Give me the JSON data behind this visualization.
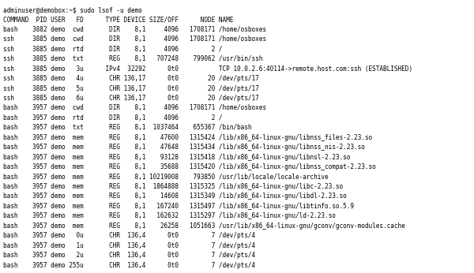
{
  "title_line": "adminuser@demobox:~$ sudo lsof -u demo",
  "rows": [
    "COMMAND  PID USER   FD      TYPE DEVICE SIZE/OFF      NODE NAME",
    "bash    3882 demo  cwd       DIR    8,1     4096   1708171 /home/osboxes",
    "ssh     3885 demo  cwd       DIR    8,1     4096   1708171 /home/osboxes",
    "ssh     3885 demo  rtd       DIR    8,1     4096         2 /",
    "ssh     3885 demo  txt       REG    8,1   707248    799062 /usr/bin/ssh",
    "ssh     3885 demo   3u      IPv4  32292      0t0           TCP 10.0.2.6:40114->remote.host.com:ssh (ESTABLISHED)",
    "ssh     3885 demo   4u       CHR 136,17      0t0        20 /dev/pts/17",
    "ssh     3885 demo   5u       CHR 136,17      0t0        20 /dev/pts/17",
    "ssh     3885 demo   6u       CHR 136,17      0t0        20 /dev/pts/17",
    "bash    3957 demo  cwd       DIR    8,1     4096   1708171 /home/osboxes",
    "bash    3957 demo  rtd       DIR    8,1     4096         2 /",
    "bash    3957 demo  txt       REG    8,1  1037464    655367 /bin/bash",
    "bash    3957 demo  mem       REG    8,1    47600   1315424 /lib/x86_64-linux-gnu/libnss_files-2.23.so",
    "bash    3957 demo  mem       REG    8,1    47648   1315434 /lib/x86_64-linux-gnu/libnss_nis-2.23.so",
    "bash    3957 demo  mem       REG    8,1    93128   1315418 /lib/x86_64-linux-gnu/libnsl-2.23.so",
    "bash    3957 demo  mem       REG    8,1    35688   1315420 /lib/x86_64-linux-gnu/libnss_compat-2.23.so",
    "bash    3957 demo  mem       REG    8,1 10219008    793850 /usr/lib/locale/locale-archive",
    "bash    3957 demo  mem       REG    8,1  1864888   1315325 /lib/x86_64-linux-gnu/libc-2.23.so",
    "bash    3957 demo  mem       REG    8,1    14608   1315349 /lib/x86_64-linux-gnu/libdl-2.23.so",
    "bash    3957 demo  mem       REG    8,1   167240   1315497 /lib/x86_64-linux-gnu/libtinfo.so.5.9",
    "bash    3957 demo  mem       REG    8,1   162632   1315297 /lib/x86_64-linux-gnu/ld-2.23.so",
    "bash    3957 demo  mem       REG    8,1    26258   1051663 /usr/lib/x86_64-linux-gnu/gconv/gconv-modules.cache",
    "bash    3957 demo   0u       CHR  136,4      0t0         7 /dev/pts/4",
    "bash    3957 demo   1u       CHR  136,4      0t0         7 /dev/pts/4",
    "bash    3957 demo   2u       CHR  136,4      0t0         7 /dev/pts/4",
    "bash    3957 demo 255u       CHR  136,4      0t0         7 /dev/pts/4"
  ],
  "bg_color": "#ffffff",
  "text_color": "#000000",
  "font_size": 5.55,
  "font_family": "monospace"
}
